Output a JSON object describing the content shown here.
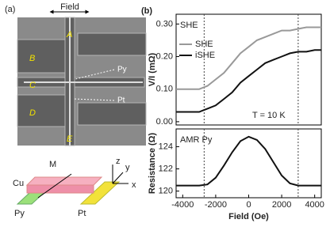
{
  "panel_a": {
    "label": "(a)",
    "field": "Field",
    "pads": [
      "A",
      "B",
      "C",
      "D",
      "E"
    ],
    "py": "Py",
    "pt": "Pt",
    "schematic": {
      "m": "M",
      "cu": "Cu",
      "z": "z",
      "y": "y",
      "x": "x",
      "py": "Py",
      "pt": "Pt"
    }
  },
  "panel_b": {
    "label": "(b)"
  },
  "chart_data": [
    {
      "type": "line",
      "text": "SHE",
      "annotation": "T = 10 K",
      "ylabel": "V/I (mΩ)",
      "x": [
        -4400,
        -4000,
        -3500,
        -3000,
        -2500,
        -2000,
        -1500,
        -1000,
        -500,
        0,
        500,
        1000,
        1500,
        2000,
        2500,
        3000,
        3500,
        4000,
        4400
      ],
      "series": [
        {
          "name": "SHE",
          "color": "#999999",
          "values": [
            0.1,
            0.1,
            0.1,
            0.1,
            0.11,
            0.13,
            0.15,
            0.18,
            0.21,
            0.23,
            0.25,
            0.26,
            0.27,
            0.28,
            0.28,
            0.285,
            0.29,
            0.29,
            0.29
          ]
        },
        {
          "name": "iSHE",
          "color": "#111111",
          "values": [
            0.03,
            0.03,
            0.03,
            0.03,
            0.04,
            0.05,
            0.07,
            0.09,
            0.12,
            0.14,
            0.16,
            0.18,
            0.19,
            0.2,
            0.21,
            0.215,
            0.215,
            0.22,
            0.22
          ]
        }
      ],
      "xlim": [
        -4400,
        4400
      ],
      "ylim": [
        -0.01,
        0.33
      ],
      "yticks": [
        {
          "value": 0,
          "label": "0.00"
        },
        {
          "value": 0.1,
          "label": "0.10"
        },
        {
          "value": 0.2,
          "label": "0.20"
        },
        {
          "value": 0.3,
          "label": "0.30"
        }
      ],
      "vlines": [
        -2700,
        3000
      ]
    },
    {
      "type": "line",
      "text": "AMR Py",
      "ylabel": "Resistance (Ω)",
      "xlabel": "Field (Oe)",
      "color": "#111111",
      "x": [
        -4400,
        -4000,
        -3500,
        -3000,
        -2500,
        -2000,
        -1500,
        -1000,
        -500,
        0,
        500,
        1000,
        1500,
        2000,
        2500,
        3000,
        3500,
        4000,
        4400
      ],
      "values": [
        120.5,
        120.5,
        120.5,
        120.5,
        120.6,
        121.2,
        122.3,
        123.5,
        124.5,
        124.9,
        124.6,
        123.8,
        122.6,
        121.4,
        120.7,
        120.5,
        120.5,
        120.5,
        120.5
      ],
      "xlim": [
        -4400,
        4400
      ],
      "ylim": [
        119.4,
        125.6
      ],
      "xticks": [
        -4000,
        -2000,
        0,
        2000,
        4000
      ],
      "yticks": [
        120,
        122,
        124
      ],
      "vlines": [
        -2700,
        3000
      ]
    }
  ]
}
